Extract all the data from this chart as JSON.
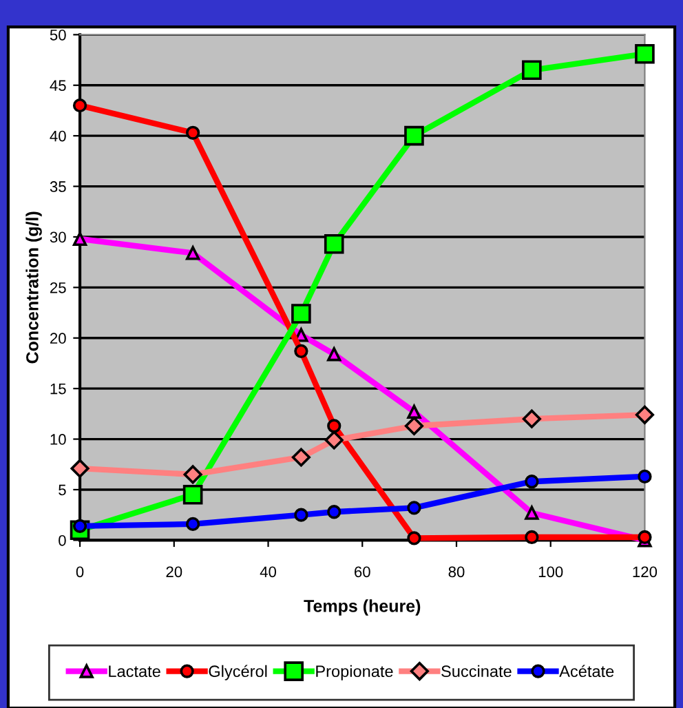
{
  "chart_data": {
    "type": "line",
    "xlabel": "Temps (heure)",
    "ylabel": "Concentration (g/l)",
    "x": [
      0,
      24,
      47,
      54,
      71,
      96,
      120
    ],
    "series": [
      {
        "name": "Lactate",
        "color": "#ff00ff",
        "marker": "triangle",
        "values": [
          29.8,
          28.4,
          20.3,
          18.4,
          12.7,
          2.7,
          0
        ]
      },
      {
        "name": "Glycérol",
        "color": "#ff0000",
        "marker": "circle",
        "values": [
          43,
          40.3,
          18.7,
          11.3,
          0.2,
          0.3,
          0.3
        ]
      },
      {
        "name": "Propionate",
        "color": "#00ff00",
        "marker": "square",
        "values": [
          1.0,
          4.5,
          22.4,
          29.3,
          40,
          46.5,
          48.1
        ]
      },
      {
        "name": "Succinate",
        "color": "#ff8080",
        "marker": "diamond",
        "values": [
          7.1,
          6.5,
          8.2,
          9.9,
          11.3,
          12.0,
          12.4
        ]
      },
      {
        "name": "Acétate",
        "color": "#0000ff",
        "marker": "circle",
        "values": [
          1.4,
          1.6,
          2.5,
          2.8,
          3.2,
          5.8,
          6.3
        ]
      }
    ],
    "xlim": [
      0,
      120
    ],
    "xticks": [
      0,
      20,
      40,
      60,
      80,
      100,
      120
    ],
    "ylim": [
      0,
      50
    ],
    "yticks": [
      0,
      5,
      10,
      15,
      20,
      25,
      30,
      35,
      40,
      45,
      50
    ],
    "grid": "y",
    "legend": "bottom",
    "line_style": "solid"
  }
}
